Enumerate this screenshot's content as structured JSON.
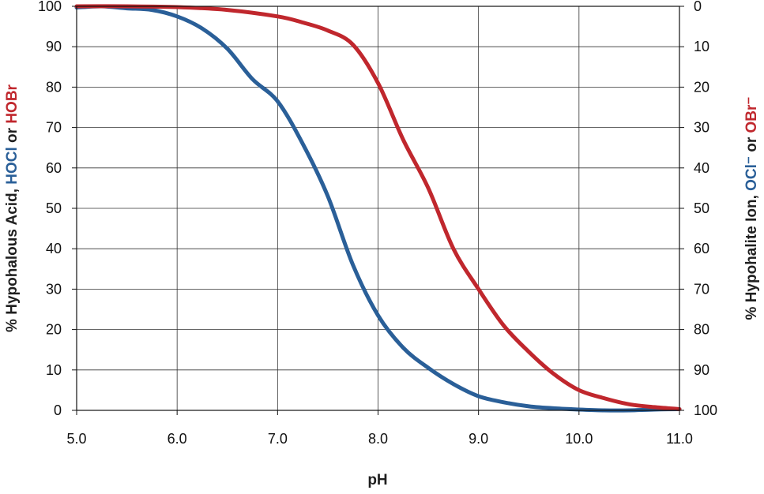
{
  "chart_data": {
    "type": "line",
    "xlabel": "pH",
    "xlim": [
      5.0,
      11.0
    ],
    "ylim": [
      0,
      100
    ],
    "y2lim": [
      100,
      0
    ],
    "x_ticks": [
      "5.0",
      "6.0",
      "7.0",
      "8.0",
      "9.0",
      "10.0",
      "11.0"
    ],
    "y_ticks": [
      "0",
      "10",
      "20",
      "30",
      "40",
      "50",
      "60",
      "70",
      "80",
      "90",
      "100"
    ],
    "y2_ticks": [
      "100",
      "90",
      "80",
      "70",
      "60",
      "50",
      "40",
      "30",
      "20",
      "10",
      "0"
    ],
    "grid": true,
    "ylabel_parts": [
      {
        "text": "% Hypohalous Acid, ",
        "color": "#1f1f1f"
      },
      {
        "text": "HOCl",
        "color": "#2a5f98"
      },
      {
        "text": " or ",
        "color": "#1f1f1f"
      },
      {
        "text": "HOBr",
        "color": "#c0272d"
      }
    ],
    "y2label_parts": [
      {
        "text": "% Hypohalite Ion, ",
        "color": "#1f1f1f"
      },
      {
        "text": "OCl⁻",
        "color": "#2a5f98"
      },
      {
        "text": " or ",
        "color": "#1f1f1f"
      },
      {
        "text": "OBr⁻",
        "color": "#c0272d"
      }
    ],
    "series": [
      {
        "color": "#2a5f98",
        "x": [
          5.0,
          5.25,
          5.5,
          5.75,
          6.0,
          6.25,
          6.5,
          6.75,
          7.0,
          7.25,
          7.5,
          7.75,
          8.0,
          8.25,
          8.5,
          8.75,
          9.0,
          9.25,
          9.5,
          9.75,
          10.0,
          10.25,
          10.5,
          10.75,
          11.0
        ],
        "y": [
          99.7,
          100,
          99.5,
          99.1,
          97.5,
          94.5,
          89.5,
          82,
          76.5,
          66,
          53,
          36,
          23.5,
          15.5,
          10.5,
          6.5,
          3.5,
          2,
          1,
          0.5,
          0.2,
          0,
          0,
          0.2,
          0.3
        ]
      },
      {
        "color": "#c0272d",
        "x": [
          5.0,
          5.5,
          6.0,
          6.5,
          7.0,
          7.25,
          7.5,
          7.75,
          8.0,
          8.25,
          8.5,
          8.75,
          9.0,
          9.25,
          9.5,
          9.75,
          10.0,
          10.25,
          10.5,
          10.75,
          11.0
        ],
        "y": [
          100,
          100,
          99.8,
          99.1,
          97.5,
          96,
          94,
          90.5,
          81,
          67,
          55,
          40,
          30,
          21,
          14.5,
          9,
          5,
          3,
          1.5,
          0.8,
          0.3
        ]
      }
    ]
  }
}
